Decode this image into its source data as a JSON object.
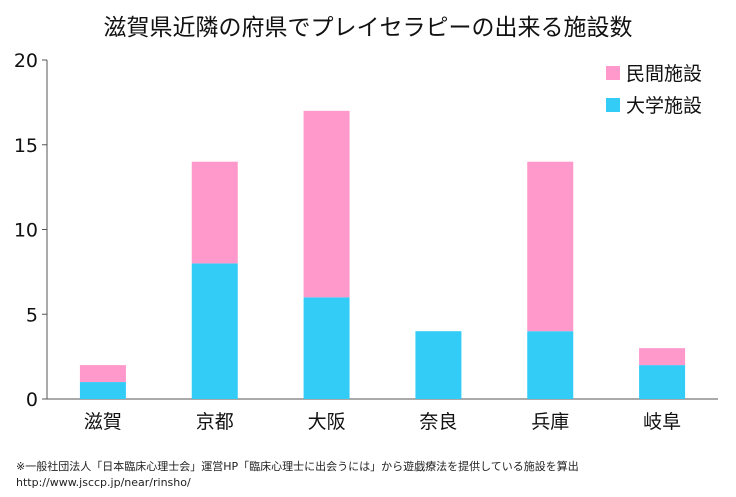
{
  "chart_data": {
    "type": "bar",
    "stacked": true,
    "title": "滋賀県近隣の府県でプレイセラピーの出来る施設数",
    "xlabel": "",
    "ylabel": "",
    "ylim": [
      0,
      20
    ],
    "yticks": [
      0,
      5,
      10,
      15,
      20
    ],
    "grid": false,
    "legend_position": "top-right",
    "categories": [
      "滋賀",
      "京都",
      "大阪",
      "奈良",
      "兵庫",
      "岐阜"
    ],
    "series": [
      {
        "name": "大学施設",
        "color": "#33CCF7",
        "values": [
          1,
          8,
          6,
          4,
          4,
          2
        ]
      },
      {
        "name": "民間施設",
        "color": "#FF99CC",
        "values": [
          1,
          6,
          11,
          0,
          10,
          1
        ]
      }
    ],
    "legend_order": [
      1,
      0
    ]
  },
  "source": {
    "line1": "※一般社団法人「日本臨床心理士会」運営HP「臨床心理士に出会うには」から遊戯療法を提供している施設を算出",
    "line2": "http://www.jsccp.jp/near/rinsho/"
  }
}
